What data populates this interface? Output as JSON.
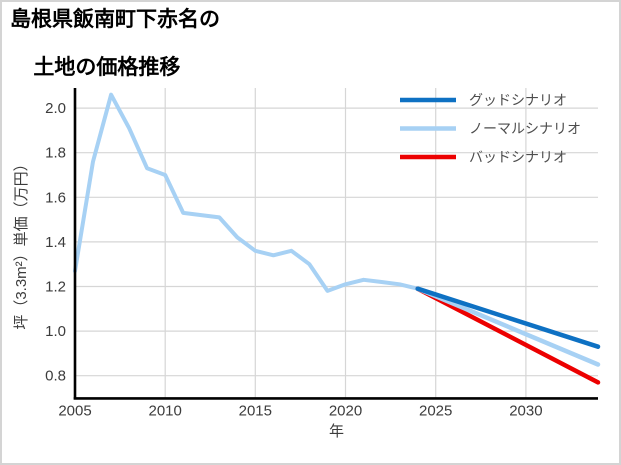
{
  "title": {
    "line1": "島根県飯南町下赤名の",
    "line2": "土地の価格推移"
  },
  "chart_data": {
    "type": "line",
    "title": "島根県飯南町下赤名の土地の価格推移",
    "xlabel": "年",
    "ylabel": "坪（3.3m²）単価（万円）",
    "xlim": [
      2005,
      2034
    ],
    "ylim": [
      0.7,
      2.09
    ],
    "xticks": [
      2005,
      2010,
      2015,
      2020,
      2025,
      2030
    ],
    "xtick_labels": [
      "2005",
      "2010",
      "2015",
      "2020",
      "2025",
      "2030"
    ],
    "yticks": [
      0.8,
      1.0,
      1.2,
      1.4,
      1.6,
      1.8,
      2.0
    ],
    "ytick_labels": [
      "0.8",
      "1.0",
      "1.2",
      "1.4",
      "1.6",
      "1.8",
      "2.0"
    ],
    "grid": true,
    "legend_position": "upper right",
    "series": [
      {
        "id": "historical",
        "name": "",
        "color": "#a7d1f4",
        "width": 4,
        "x": [
          2005,
          2006,
          2007,
          2008,
          2009,
          2010,
          2011,
          2012,
          2013,
          2014,
          2015,
          2016,
          2017,
          2018,
          2019,
          2020,
          2021,
          2022,
          2023,
          2024
        ],
        "values": [
          1.27,
          1.76,
          2.06,
          1.91,
          1.73,
          1.7,
          1.53,
          1.52,
          1.51,
          1.42,
          1.36,
          1.34,
          1.36,
          1.3,
          1.18,
          1.21,
          1.23,
          1.22,
          1.21,
          1.19
        ]
      },
      {
        "id": "bad",
        "name": "バッドシナリオ",
        "color": "#ec0000",
        "width": 4.5,
        "x": [
          2024,
          2034
        ],
        "values": [
          1.19,
          0.77
        ]
      },
      {
        "id": "normal",
        "name": "ノーマルシナリオ",
        "color": "#a7d1f4",
        "width": 4.5,
        "x": [
          2024,
          2034
        ],
        "values": [
          1.19,
          0.85
        ]
      },
      {
        "id": "good",
        "name": "グッドシナリオ",
        "color": "#0e71c3",
        "width": 4.5,
        "x": [
          2024,
          2034
        ],
        "values": [
          1.19,
          0.93
        ]
      }
    ]
  },
  "legend": {
    "items": [
      {
        "label": "グッドシナリオ",
        "color": "#0e71c3"
      },
      {
        "label": "ノーマルシナリオ",
        "color": "#a7d1f4"
      },
      {
        "label": "バッドシナリオ",
        "color": "#ec0000"
      }
    ]
  },
  "colors": {
    "background": "#ffffff",
    "page_border": "#d4d4d4",
    "grid": "#d6d6d6",
    "spine": "#000000",
    "tick_text": "#3c3c3c",
    "legend_text": "#4d4d4d",
    "title_text": "#000000"
  }
}
